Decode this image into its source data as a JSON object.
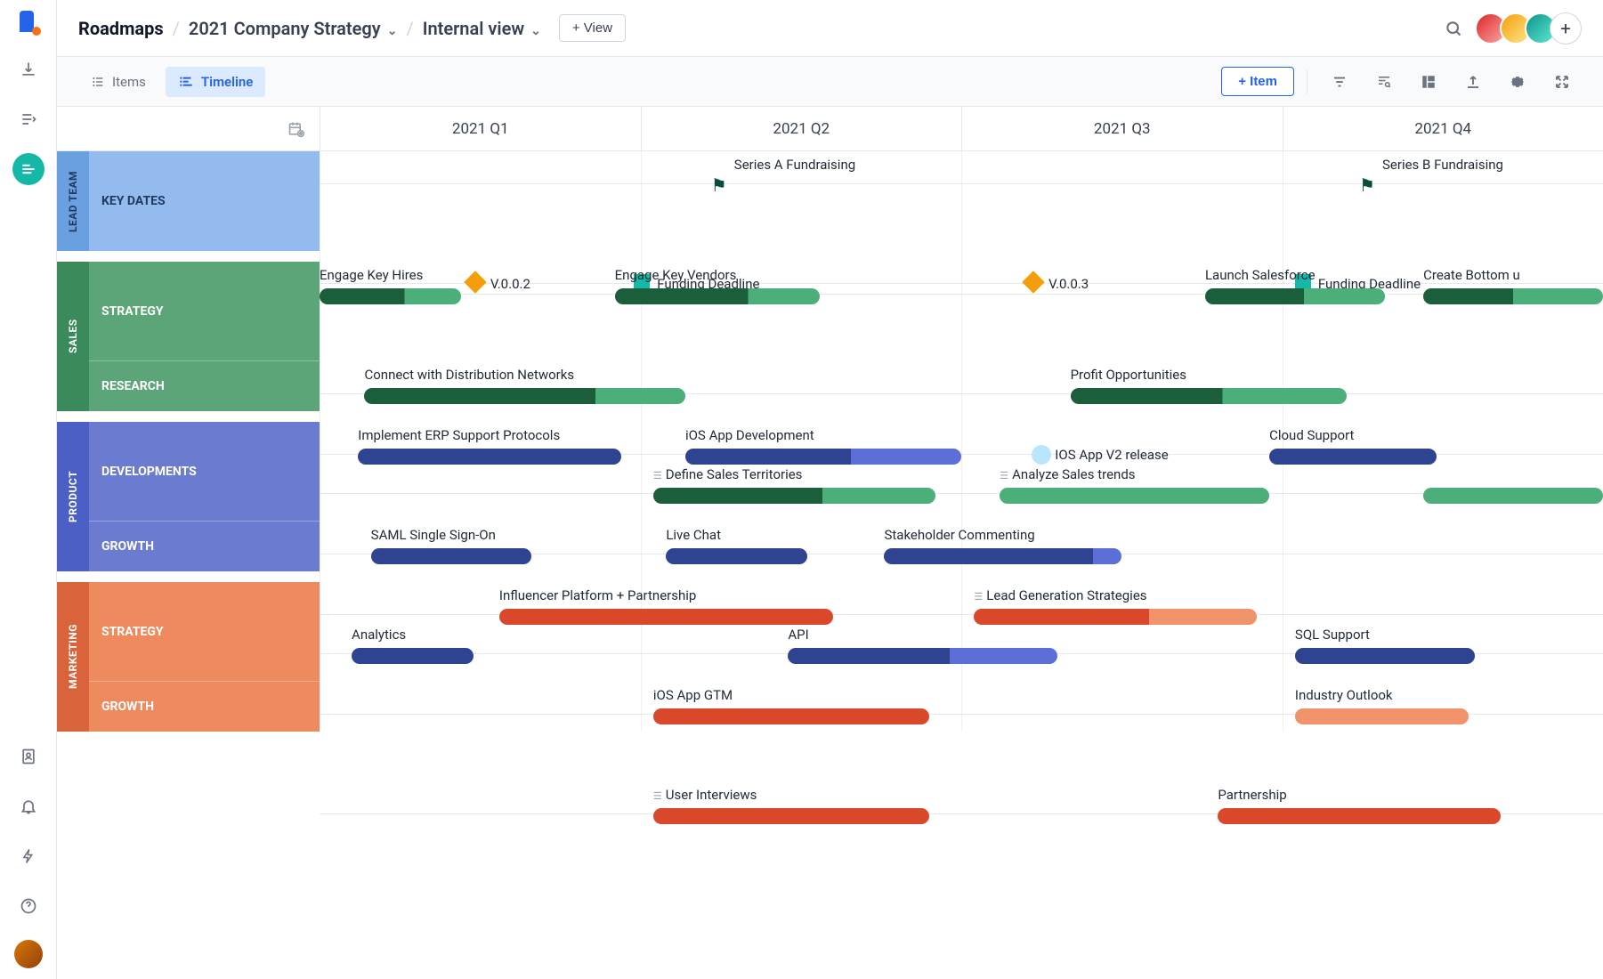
{
  "breadcrumb": {
    "root": "Roadmaps",
    "strategy": "2021 Company Strategy",
    "view": "Internal view"
  },
  "header": {
    "add_view": "+ View"
  },
  "tabs": {
    "items": "Items",
    "timeline": "Timeline"
  },
  "toolbar": {
    "add_item": "+  Item"
  },
  "quarters": [
    "2021 Q1",
    "2021 Q2",
    "2021 Q3",
    "2021 Q4"
  ],
  "groups": [
    {
      "name": "LEAD TEAM",
      "tab_color": "#6a9fe0",
      "row_color": "#93bbed",
      "text_color": "#1e3a5f",
      "rows": [
        {
          "label": "KEY DATES",
          "tracks": [
            {
              "milestones": [
                {
                  "type": "flag",
                  "pos": 0.305,
                  "label": "Series A Fundraising"
                },
                {
                  "type": "flag",
                  "pos": 0.81,
                  "label": "Series B Fundraising"
                }
              ]
            },
            {
              "milestones": [
                {
                  "type": "diamond",
                  "pos": 0.115,
                  "label": "V.0.0.2",
                  "side": true
                },
                {
                  "type": "square",
                  "pos": 0.245,
                  "label": "Funding Deadline",
                  "side": true
                },
                {
                  "type": "diamond",
                  "pos": 0.55,
                  "label": "V.0.0.3",
                  "side": true
                },
                {
                  "type": "square",
                  "pos": 0.76,
                  "label": "Funding Deadline",
                  "side": true
                }
              ]
            }
          ]
        }
      ]
    },
    {
      "name": "SALES",
      "tab_color": "#3a8a5c",
      "row_color": "#5ba578",
      "rows": [
        {
          "label": "STRATEGY",
          "tracks": [
            {
              "bars": [
                {
                  "label": "Engage Key Hires",
                  "start": 0.0,
                  "end": 0.11,
                  "color": "#1b5e3c",
                  "color2": "#4caf7a",
                  "split": 0.6
                },
                {
                  "label": "Engage Key Vendors",
                  "start": 0.23,
                  "end": 0.39,
                  "color": "#1b5e3c",
                  "color2": "#4caf7a",
                  "split": 0.65
                },
                {
                  "label": "Launch Salesforce",
                  "start": 0.69,
                  "end": 0.83,
                  "color": "#1b5e3c",
                  "color2": "#4caf7a",
                  "split": 0.55
                },
                {
                  "label": "Create Bottom u",
                  "start": 0.86,
                  "end": 1.0,
                  "color": "#1b5e3c",
                  "color2": "#4caf7a",
                  "split": 0.5
                }
              ]
            },
            {
              "bars": [
                {
                  "label": "Connect with Distribution Networks",
                  "start": 0.035,
                  "end": 0.285,
                  "color": "#1b5e3c",
                  "color2": "#4caf7a",
                  "split": 0.72
                },
                {
                  "label": "Profit Opportunities",
                  "start": 0.585,
                  "end": 0.8,
                  "color": "#1b5e3c",
                  "color2": "#4caf7a",
                  "split": 0.55
                }
              ]
            }
          ]
        },
        {
          "label": "RESEARCH",
          "tracks": [
            {
              "bars": [
                {
                  "label": "Define Sales Territories",
                  "start": 0.26,
                  "end": 0.48,
                  "color": "#1b5e3c",
                  "color2": "#4caf7a",
                  "split": 0.6,
                  "sub": true
                },
                {
                  "label": "Analyze Sales trends",
                  "start": 0.53,
                  "end": 0.74,
                  "color": "#4caf7a",
                  "sub": true
                },
                {
                  "label": "",
                  "start": 0.86,
                  "end": 1.0,
                  "color": "#4caf7a"
                }
              ]
            }
          ]
        }
      ]
    },
    {
      "name": "PRODUCT",
      "tab_color": "#4c5fc4",
      "row_color": "#6b7bd0",
      "rows": [
        {
          "label": "DEVELOPMENTS",
          "tracks": [
            {
              "bars": [
                {
                  "label": "Implement ERP Support Protocols",
                  "start": 0.03,
                  "end": 0.235,
                  "color": "#2e4491"
                },
                {
                  "label": "iOS App Development",
                  "start": 0.285,
                  "end": 0.5,
                  "color": "#2e4491",
                  "color2": "#5b6fd6",
                  "split": 0.6
                },
                {
                  "label": "Cloud Support",
                  "start": 0.74,
                  "end": 0.87,
                  "color": "#2e4491"
                }
              ],
              "milestones": [
                {
                  "type": "circle",
                  "pos": 0.555,
                  "label": "IOS App V2 release",
                  "side": true
                }
              ]
            },
            {
              "bars": [
                {
                  "label": "SAML Single Sign-On",
                  "start": 0.04,
                  "end": 0.165,
                  "color": "#2e4491"
                },
                {
                  "label": "Live Chat",
                  "start": 0.27,
                  "end": 0.38,
                  "color": "#2e4491"
                },
                {
                  "label": "Stakeholder Commenting",
                  "start": 0.44,
                  "end": 0.625,
                  "color": "#2e4491",
                  "color2": "#5b6fd6",
                  "split": 0.88
                }
              ]
            }
          ]
        },
        {
          "label": "GROWTH",
          "tracks": [
            {
              "bars": [
                {
                  "label": "Analytics",
                  "start": 0.025,
                  "end": 0.12,
                  "color": "#2e4491"
                },
                {
                  "label": "API",
                  "start": 0.365,
                  "end": 0.575,
                  "color": "#2e4491",
                  "color2": "#5b6fd6",
                  "split": 0.6
                },
                {
                  "label": "SQL Support",
                  "start": 0.76,
                  "end": 0.9,
                  "color": "#2e4491"
                }
              ]
            }
          ]
        }
      ]
    },
    {
      "name": "MARKETING",
      "tab_color": "#d9633b",
      "row_color": "#ed8a5e",
      "rows": [
        {
          "label": "STRATEGY",
          "tracks": [
            {
              "bars": [
                {
                  "label": "Influencer Platform + Partnership",
                  "start": 0.14,
                  "end": 0.4,
                  "color": "#d9482b"
                },
                {
                  "label": "Lead Generation Strategies",
                  "start": 0.51,
                  "end": 0.73,
                  "color": "#d9482b",
                  "color2": "#f0936b",
                  "split": 0.62,
                  "sub": true
                }
              ]
            },
            {
              "bars": [
                {
                  "label": "iOS App GTM",
                  "start": 0.26,
                  "end": 0.475,
                  "color": "#d9482b"
                },
                {
                  "label": "Industry Outlook",
                  "start": 0.76,
                  "end": 0.895,
                  "color": "#f0936b"
                }
              ]
            }
          ]
        },
        {
          "label": "GROWTH",
          "tracks": [
            {
              "bars": [
                {
                  "label": "User Interviews",
                  "start": 0.26,
                  "end": 0.475,
                  "color": "#d9482b",
                  "sub": true
                },
                {
                  "label": "Partnership",
                  "start": 0.7,
                  "end": 0.92,
                  "color": "#d9482b"
                }
              ]
            }
          ]
        }
      ]
    }
  ]
}
